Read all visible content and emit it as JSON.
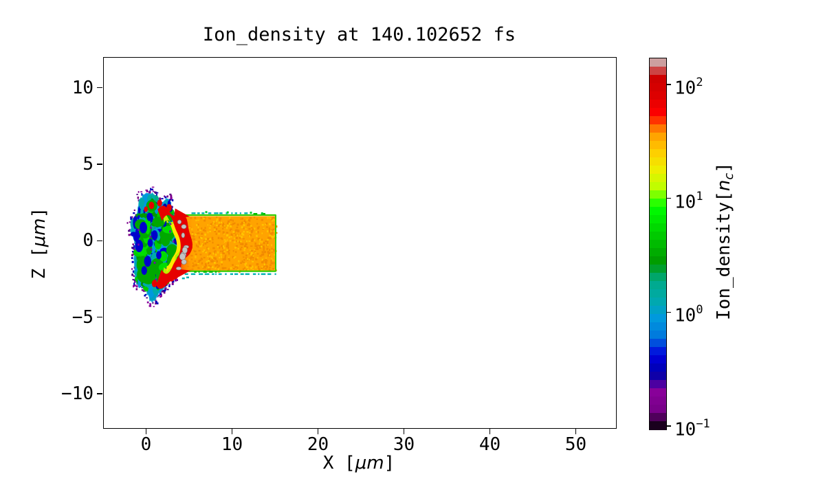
{
  "chart_data": {
    "type": "heatmap",
    "title": "Ion_density at 140.102652 fs",
    "time_fs": 140.102652,
    "xlabel": "X [μm]",
    "ylabel": "Z [μm]",
    "xlabel_parts": {
      "pre": "X [",
      "italic": "μm",
      "post": "]"
    },
    "ylabel_parts": {
      "pre": "Z [",
      "italic": "μm",
      "post": "]"
    },
    "x_range": [
      -5,
      54.6
    ],
    "z_range": [
      -12.2,
      12.0
    ],
    "x_ticks": [
      {
        "value": 0,
        "label": "0"
      },
      {
        "value": 10,
        "label": "10"
      },
      {
        "value": 20,
        "label": "20"
      },
      {
        "value": 30,
        "label": "30"
      },
      {
        "value": 40,
        "label": "40"
      },
      {
        "value": 50,
        "label": "50"
      }
    ],
    "y_ticks": [
      {
        "value": 10,
        "label": "10"
      },
      {
        "value": 5,
        "label": "5"
      },
      {
        "value": 0,
        "label": "0"
      },
      {
        "value": -5,
        "label": "−5"
      },
      {
        "value": -10,
        "label": "−10"
      }
    ],
    "grid": false,
    "colorbar": {
      "label": "Ion_density[n_c]",
      "label_parts": {
        "pre": "Ion_density[",
        "italic": "n",
        "sub": "c",
        "post": "]"
      },
      "scale": "log",
      "colormap": "nipy_spectral",
      "segments": 45,
      "ticks": [
        {
          "base": "10",
          "exp": "2",
          "value": 100,
          "frac": 0.072
        },
        {
          "base": "10",
          "exp": "1",
          "value": 10,
          "frac": 0.379
        },
        {
          "base": "10",
          "exp": "0",
          "value": 1,
          "frac": 0.686
        },
        {
          "base": "10",
          "exp": "−1",
          "value": 0.1,
          "frac": 0.993
        }
      ],
      "stops": [
        [
          0.0,
          "#000000"
        ],
        [
          0.05,
          "#770088"
        ],
        [
          0.1,
          "#880099"
        ],
        [
          0.15,
          "#0000aa"
        ],
        [
          0.2,
          "#0000dd"
        ],
        [
          0.25,
          "#0077dd"
        ],
        [
          0.3,
          "#0099dd"
        ],
        [
          0.35,
          "#00aaaa"
        ],
        [
          0.4,
          "#00aa88"
        ],
        [
          0.45,
          "#009900"
        ],
        [
          0.5,
          "#00bb00"
        ],
        [
          0.55,
          "#00dd00"
        ],
        [
          0.6,
          "#00ff00"
        ],
        [
          0.65,
          "#bbff00"
        ],
        [
          0.7,
          "#eeee00"
        ],
        [
          0.75,
          "#ffcc00"
        ],
        [
          0.8,
          "#ff9900"
        ],
        [
          0.85,
          "#ff0000"
        ],
        [
          0.9,
          "#dd0000"
        ],
        [
          0.95,
          "#cc0000"
        ],
        [
          1.0,
          "#cccccc"
        ]
      ]
    },
    "features": {
      "target_slab": {
        "x_range": [
          3.3,
          15.0
        ],
        "z_range": [
          -1.9,
          1.65
        ],
        "base_color": "#ffa300",
        "speckle_colors": [
          "#f28a00",
          "#ffc400"
        ],
        "front_color": "#ee1100",
        "approx_density_nc": 30
      },
      "slab_edge_lines": {
        "color": "#33cc00",
        "z_top": 1.72,
        "z_bottom": -1.95,
        "x_end": 15.05
      },
      "edge_dashes": {
        "cyan": "#00b0b0",
        "green": "#00bb00"
      },
      "plasma_blob": {
        "center": [
          1.15,
          -0.2
        ],
        "rx": 2.95,
        "rz": 3.25,
        "x_extent": [
          -1.7,
          5.2
        ],
        "z_extent": [
          -3.4,
          2.95
        ],
        "outer_color": "#009fc0",
        "outline_color": "#2ab4e0",
        "mottle_colors": [
          "#0099dd",
          "#00aaaa",
          "#009900",
          "#00cc00",
          "#0000cc",
          "#0000aa",
          "#00aa88"
        ],
        "green_web": "#00a800",
        "bright_green": "#00dd00",
        "dark_blue": "#0000cc",
        "purple_speck": "#7700aa",
        "halo_colors": [
          "#770088",
          "#880099",
          "#4b0082",
          "#0000bb"
        ],
        "crescent": {
          "center": [
            2.35,
            -0.2
          ],
          "outer_r": [
            2.6,
            2.5
          ],
          "inner_r": [
            1.45,
            1.75
          ],
          "half_angle_rad": 2.0,
          "color": "#e60000"
        },
        "yellow_ring": "#ffe800",
        "yellowgreen_ring": "#bbee00",
        "overdense_speck_color": "#c4c4c4"
      }
    }
  }
}
